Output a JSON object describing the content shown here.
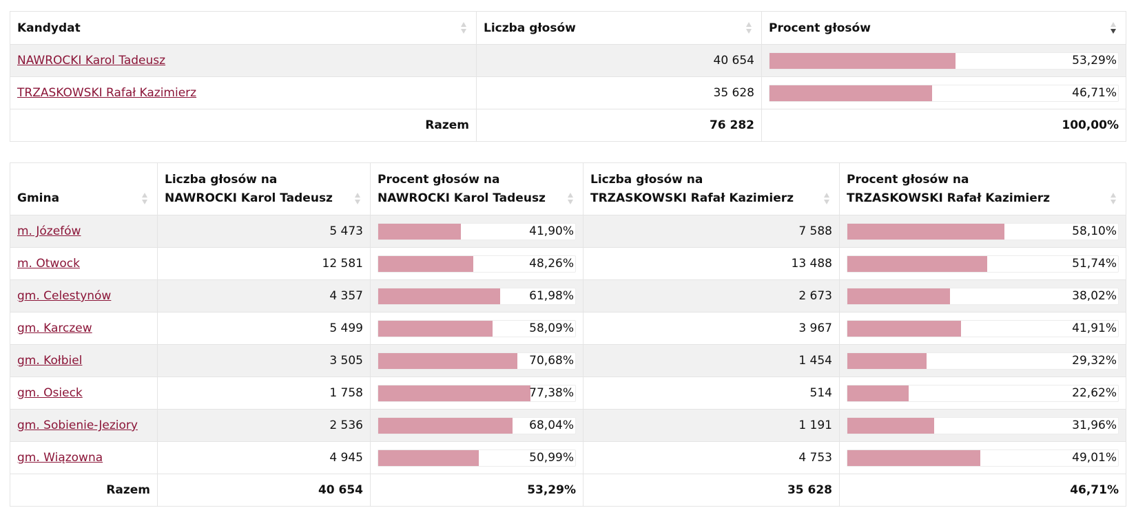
{
  "summary": {
    "headers": {
      "kandydat": "Kandydat",
      "liczba": "Liczba głosów",
      "procent": "Procent głosów"
    },
    "rows": [
      {
        "name": "NAWROCKI Karol Tadeusz",
        "votes": "40 654",
        "percent": "53,29%",
        "share": 53.29
      },
      {
        "name": "TRZASKOWSKI Rafał Kazimierz",
        "votes": "35 628",
        "percent": "46,71%",
        "share": 46.71
      }
    ],
    "total": {
      "label": "Razem",
      "votes": "76 282",
      "percent": "100,00%"
    }
  },
  "gminy": {
    "headers": {
      "gmina": "Gmina",
      "n_votes_l1": "Liczba głosów na",
      "n_votes_l2": "NAWROCKI Karol Tadeusz",
      "n_pct_l1": "Procent głosów na",
      "n_pct_l2": "NAWROCKI Karol Tadeusz",
      "t_votes_l1": "Liczba głosów na",
      "t_votes_l2": "TRZASKOWSKI Rafał Kazimierz",
      "t_pct_l1": "Procent głosów na",
      "t_pct_l2": "TRZASKOWSKI Rafał Kazimierz"
    },
    "rows": [
      {
        "name": "m. Józefów",
        "n_votes": "5 473",
        "n_pct": "41,90%",
        "n_share": 41.9,
        "t_votes": "7 588",
        "t_pct": "58,10%",
        "t_share": 58.1
      },
      {
        "name": "m. Otwock",
        "n_votes": "12 581",
        "n_pct": "48,26%",
        "n_share": 48.26,
        "t_votes": "13 488",
        "t_pct": "51,74%",
        "t_share": 51.74
      },
      {
        "name": "gm. Celestynów",
        "n_votes": "4 357",
        "n_pct": "61,98%",
        "n_share": 61.98,
        "t_votes": "2 673",
        "t_pct": "38,02%",
        "t_share": 38.02
      },
      {
        "name": "gm. Karczew",
        "n_votes": "5 499",
        "n_pct": "58,09%",
        "n_share": 58.09,
        "t_votes": "3 967",
        "t_pct": "41,91%",
        "t_share": 41.91
      },
      {
        "name": "gm. Kołbiel",
        "n_votes": "3 505",
        "n_pct": "70,68%",
        "n_share": 70.68,
        "t_votes": "1 454",
        "t_pct": "29,32%",
        "t_share": 29.32
      },
      {
        "name": "gm. Osieck",
        "n_votes": "1 758",
        "n_pct": "77,38%",
        "n_share": 77.38,
        "t_votes": "514",
        "t_pct": "22,62%",
        "t_share": 22.62
      },
      {
        "name": "gm. Sobienie-Jeziory",
        "n_votes": "2 536",
        "n_pct": "68,04%",
        "n_share": 68.04,
        "t_votes": "1 191",
        "t_pct": "31,96%",
        "t_share": 31.96
      },
      {
        "name": "gm. Wiązowna",
        "n_votes": "4 945",
        "n_pct": "50,99%",
        "n_share": 50.99,
        "t_votes": "4 753",
        "t_pct": "49,01%",
        "t_share": 49.01
      }
    ],
    "total": {
      "label": "Razem",
      "n_votes": "40 654",
      "n_pct": "53,29%",
      "t_votes": "35 628",
      "t_pct": "46,71%"
    }
  },
  "colors": {
    "bar": "#d99ba9",
    "link": "#8b1538",
    "row_alt": "#f1f1f1"
  }
}
